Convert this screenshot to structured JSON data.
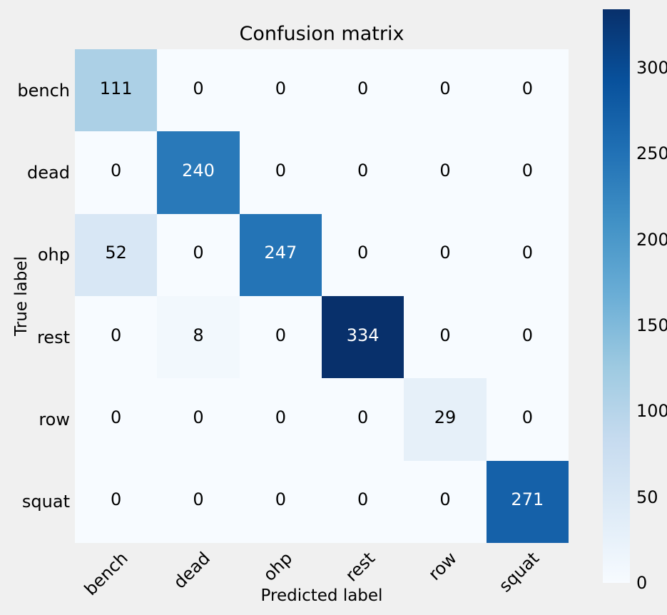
{
  "chart_data": {
    "type": "heatmap",
    "title": "Confusion matrix",
    "xlabel": "Predicted label",
    "ylabel": "True label",
    "x_categories": [
      "bench",
      "dead",
      "ohp",
      "rest",
      "row",
      "squat"
    ],
    "y_categories": [
      "bench",
      "dead",
      "ohp",
      "rest",
      "row",
      "squat"
    ],
    "matrix": [
      [
        111,
        0,
        0,
        0,
        0,
        0
      ],
      [
        0,
        240,
        0,
        0,
        0,
        0
      ],
      [
        52,
        0,
        247,
        0,
        0,
        0
      ],
      [
        0,
        8,
        0,
        334,
        0,
        0
      ],
      [
        0,
        0,
        0,
        0,
        29,
        0
      ],
      [
        0,
        0,
        0,
        0,
        0,
        271
      ]
    ],
    "vmin": 0,
    "vmax": 334,
    "colormap": "Blues",
    "colorbar_ticks": [
      0,
      50,
      100,
      150,
      200,
      250,
      300
    ],
    "legend_position": "right-colorbar",
    "grid": false
  },
  "colors": {
    "figure_background": "#f0f0f0",
    "cell_text_dark": "#000000",
    "cell_text_light": "#ffffff",
    "blues_anchors": [
      "#f7fbff",
      "#deebf7",
      "#c6dbef",
      "#9ecae1",
      "#6baed6",
      "#4292c6",
      "#2171b5",
      "#08519c",
      "#08306b"
    ]
  }
}
